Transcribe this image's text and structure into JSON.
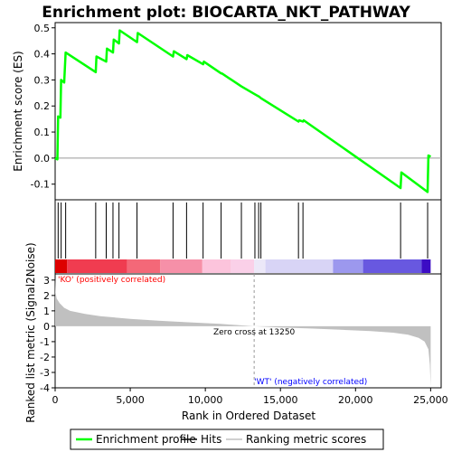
{
  "chart_data": {
    "type": "line",
    "title": "Enrichment plot: BIOCARTA_NKT_PATHWAY",
    "colors": {
      "enrichment": "#00ff00",
      "hits": "#000000",
      "metric": "#c0c0c0",
      "ko_label": "#ff0000",
      "wt_label": "#0000ff"
    },
    "panels": {
      "enrichment": {
        "ylabel": "Enrichment score (ES)",
        "yticks": [
          -0.1,
          0.0,
          0.1,
          0.2,
          0.3,
          0.4,
          0.5
        ],
        "ylim": [
          -0.16,
          0.52
        ],
        "points": [
          [
            0,
            0.0
          ],
          [
            150,
            -0.005
          ],
          [
            200,
            0.16
          ],
          [
            350,
            0.155
          ],
          [
            400,
            0.3
          ],
          [
            600,
            0.29
          ],
          [
            700,
            0.405
          ],
          [
            2700,
            0.33
          ],
          [
            2750,
            0.39
          ],
          [
            3400,
            0.37
          ],
          [
            3450,
            0.42
          ],
          [
            3850,
            0.405
          ],
          [
            3900,
            0.455
          ],
          [
            4250,
            0.44
          ],
          [
            4300,
            0.49
          ],
          [
            5450,
            0.445
          ],
          [
            5500,
            0.48
          ],
          [
            7850,
            0.39
          ],
          [
            7900,
            0.41
          ],
          [
            8750,
            0.38
          ],
          [
            8800,
            0.395
          ],
          [
            9850,
            0.36
          ],
          [
            9900,
            0.37
          ],
          [
            11050,
            0.325
          ],
          [
            11100,
            0.325
          ],
          [
            12400,
            0.275
          ],
          [
            13300,
            0.245
          ],
          [
            13600,
            0.235
          ],
          [
            13700,
            0.23
          ],
          [
            16200,
            0.14
          ],
          [
            16250,
            0.145
          ],
          [
            16500,
            0.14
          ],
          [
            16550,
            0.145
          ],
          [
            23000,
            -0.115
          ],
          [
            23050,
            -0.055
          ],
          [
            24800,
            -0.13
          ],
          [
            24850,
            0.01
          ],
          [
            25000,
            0.005
          ]
        ]
      },
      "hits": {
        "positions": [
          200,
          400,
          700,
          2700,
          3400,
          3850,
          4250,
          5450,
          7850,
          8750,
          9850,
          11050,
          12400,
          13300,
          13550,
          13700,
          16200,
          16500,
          23000,
          24800
        ]
      },
      "gradient": {
        "segments": [
          {
            "start": 0,
            "end": 800,
            "color": "#dd0000"
          },
          {
            "start": 800,
            "end": 4800,
            "color": "#f03c50"
          },
          {
            "start": 4800,
            "end": 7000,
            "color": "#f46878"
          },
          {
            "start": 7000,
            "end": 9800,
            "color": "#f690a8"
          },
          {
            "start": 9800,
            "end": 11700,
            "color": "#fcc4dc"
          },
          {
            "start": 11700,
            "end": 13250,
            "color": "#fad0e8"
          },
          {
            "start": 13250,
            "end": 14000,
            "color": "#ece8f8"
          },
          {
            "start": 14000,
            "end": 18500,
            "color": "#d8d4f6"
          },
          {
            "start": 18500,
            "end": 20500,
            "color": "#9c98ee"
          },
          {
            "start": 20500,
            "end": 24400,
            "color": "#6858e0"
          },
          {
            "start": 24400,
            "end": 25000,
            "color": "#3c0cc4"
          }
        ]
      },
      "metric": {
        "ylabel": "Ranked list metric (Signal2Noise)",
        "yticks": [
          -4,
          -3,
          -2,
          -1,
          0,
          1,
          2,
          3
        ],
        "ylim": [
          -4,
          3.4
        ],
        "points": [
          [
            0,
            3.2
          ],
          [
            30,
            2.2
          ],
          [
            100,
            1.8
          ],
          [
            300,
            1.5
          ],
          [
            600,
            1.2
          ],
          [
            1000,
            1.0
          ],
          [
            2000,
            0.8
          ],
          [
            3000,
            0.65
          ],
          [
            5000,
            0.48
          ],
          [
            7000,
            0.35
          ],
          [
            9000,
            0.25
          ],
          [
            11000,
            0.15
          ],
          [
            13250,
            0.0
          ],
          [
            15000,
            -0.08
          ],
          [
            17000,
            -0.15
          ],
          [
            19000,
            -0.23
          ],
          [
            21000,
            -0.32
          ],
          [
            22500,
            -0.42
          ],
          [
            23500,
            -0.55
          ],
          [
            24200,
            -0.75
          ],
          [
            24600,
            -1.0
          ],
          [
            24850,
            -1.5
          ],
          [
            24950,
            -2.5
          ],
          [
            25000,
            -3.9
          ]
        ],
        "ko_label": "'KO' (positively correlated)",
        "wt_label": "'WT' (negatively correlated)",
        "zero_cross_label": "Zero cross at 13250",
        "zero_cross": 13250
      }
    },
    "x_axis": {
      "label": "Rank in Ordered Dataset",
      "ticks": [
        0,
        5000,
        10000,
        15000,
        20000,
        25000
      ],
      "tick_labels": [
        "0",
        "5,000",
        "10,000",
        "15,000",
        "20,000",
        "25,000"
      ],
      "xlim": [
        0,
        25700
      ]
    },
    "legend": {
      "position": "bottom",
      "entries": [
        {
          "label": "Enrichment profile",
          "kind": "line",
          "color": "#00ff00"
        },
        {
          "label": "Hits",
          "kind": "line",
          "color": "#000000"
        },
        {
          "label": "Ranking metric scores",
          "kind": "line",
          "color": "#c0c0c0"
        }
      ]
    }
  }
}
